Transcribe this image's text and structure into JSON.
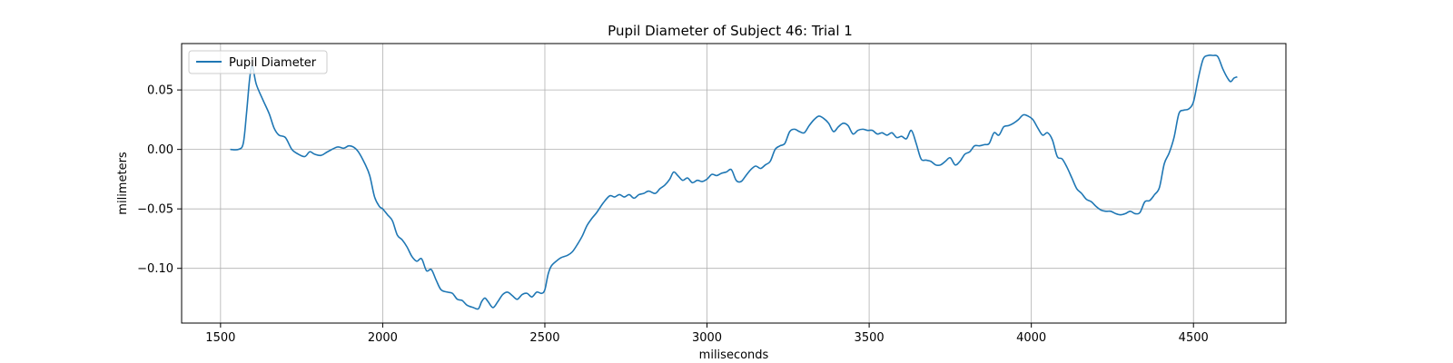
{
  "chart_data": {
    "type": "line",
    "title": "Pupil Diameter of Subject 46: Trial 1",
    "xlabel": "miliseconds",
    "ylabel": "milimeters",
    "xlim": [
      1380,
      4785
    ],
    "ylim": [
      -0.146,
      0.089
    ],
    "xticks": [
      1500,
      2000,
      2500,
      3000,
      3500,
      4000,
      4500
    ],
    "xtick_labels": [
      "1500",
      "2000",
      "2500",
      "3000",
      "3500",
      "4000",
      "4500"
    ],
    "yticks": [
      -0.1,
      -0.05,
      0.0,
      0.05
    ],
    "ytick_labels": [
      "−0.10",
      "−0.05",
      "0.00",
      "0.05"
    ],
    "grid": true,
    "legend_position": "top-left",
    "series": [
      {
        "name": "Pupil Diameter",
        "color": "#1f77b4",
        "points": [
          [
            1530,
            0.0
          ],
          [
            1555,
            0.0
          ],
          [
            1570,
            0.005
          ],
          [
            1580,
            0.03
          ],
          [
            1590,
            0.06
          ],
          [
            1598,
            0.07
          ],
          [
            1610,
            0.055
          ],
          [
            1630,
            0.042
          ],
          [
            1650,
            0.03
          ],
          [
            1665,
            0.018
          ],
          [
            1680,
            0.012
          ],
          [
            1700,
            0.01
          ],
          [
            1720,
            0.0
          ],
          [
            1740,
            -0.004
          ],
          [
            1760,
            -0.006
          ],
          [
            1775,
            -0.002
          ],
          [
            1790,
            -0.004
          ],
          [
            1810,
            -0.005
          ],
          [
            1830,
            -0.002
          ],
          [
            1860,
            0.002
          ],
          [
            1880,
            0.001
          ],
          [
            1895,
            0.003
          ],
          [
            1910,
            0.002
          ],
          [
            1925,
            -0.002
          ],
          [
            1945,
            -0.012
          ],
          [
            1960,
            -0.022
          ],
          [
            1975,
            -0.04
          ],
          [
            1990,
            -0.048
          ],
          [
            2000,
            -0.05
          ],
          [
            2015,
            -0.055
          ],
          [
            2030,
            -0.06
          ],
          [
            2045,
            -0.072
          ],
          [
            2060,
            -0.076
          ],
          [
            2075,
            -0.082
          ],
          [
            2090,
            -0.09
          ],
          [
            2105,
            -0.094
          ],
          [
            2120,
            -0.092
          ],
          [
            2135,
            -0.102
          ],
          [
            2150,
            -0.101
          ],
          [
            2165,
            -0.11
          ],
          [
            2180,
            -0.118
          ],
          [
            2200,
            -0.12
          ],
          [
            2215,
            -0.121
          ],
          [
            2230,
            -0.126
          ],
          [
            2245,
            -0.127
          ],
          [
            2260,
            -0.131
          ],
          [
            2280,
            -0.133
          ],
          [
            2295,
            -0.134
          ],
          [
            2305,
            -0.128
          ],
          [
            2315,
            -0.125
          ],
          [
            2325,
            -0.128
          ],
          [
            2340,
            -0.133
          ],
          [
            2355,
            -0.128
          ],
          [
            2370,
            -0.122
          ],
          [
            2385,
            -0.12
          ],
          [
            2400,
            -0.123
          ],
          [
            2415,
            -0.126
          ],
          [
            2430,
            -0.122
          ],
          [
            2445,
            -0.121
          ],
          [
            2460,
            -0.124
          ],
          [
            2475,
            -0.12
          ],
          [
            2490,
            -0.121
          ],
          [
            2500,
            -0.118
          ],
          [
            2510,
            -0.105
          ],
          [
            2520,
            -0.098
          ],
          [
            2535,
            -0.094
          ],
          [
            2550,
            -0.091
          ],
          [
            2570,
            -0.089
          ],
          [
            2585,
            -0.086
          ],
          [
            2600,
            -0.08
          ],
          [
            2615,
            -0.073
          ],
          [
            2630,
            -0.064
          ],
          [
            2645,
            -0.058
          ],
          [
            2660,
            -0.053
          ],
          [
            2680,
            -0.045
          ],
          [
            2700,
            -0.039
          ],
          [
            2715,
            -0.04
          ],
          [
            2730,
            -0.038
          ],
          [
            2745,
            -0.04
          ],
          [
            2760,
            -0.038
          ],
          [
            2775,
            -0.041
          ],
          [
            2790,
            -0.038
          ],
          [
            2805,
            -0.037
          ],
          [
            2820,
            -0.035
          ],
          [
            2840,
            -0.037
          ],
          [
            2855,
            -0.033
          ],
          [
            2870,
            -0.03
          ],
          [
            2885,
            -0.025
          ],
          [
            2897,
            -0.019
          ],
          [
            2910,
            -0.022
          ],
          [
            2925,
            -0.026
          ],
          [
            2940,
            -0.024
          ],
          [
            2955,
            -0.028
          ],
          [
            2970,
            -0.026
          ],
          [
            2985,
            -0.027
          ],
          [
            3000,
            -0.025
          ],
          [
            3015,
            -0.021
          ],
          [
            3030,
            -0.022
          ],
          [
            3045,
            -0.02
          ],
          [
            3060,
            -0.019
          ],
          [
            3075,
            -0.017
          ],
          [
            3090,
            -0.026
          ],
          [
            3105,
            -0.027
          ],
          [
            3120,
            -0.022
          ],
          [
            3135,
            -0.017
          ],
          [
            3150,
            -0.014
          ],
          [
            3165,
            -0.016
          ],
          [
            3180,
            -0.013
          ],
          [
            3195,
            -0.01
          ],
          [
            3210,
            0.0
          ],
          [
            3225,
            0.003
          ],
          [
            3240,
            0.005
          ],
          [
            3255,
            0.015
          ],
          [
            3270,
            0.017
          ],
          [
            3285,
            0.015
          ],
          [
            3300,
            0.014
          ],
          [
            3315,
            0.02
          ],
          [
            3330,
            0.025
          ],
          [
            3345,
            0.028
          ],
          [
            3360,
            0.026
          ],
          [
            3375,
            0.022
          ],
          [
            3390,
            0.015
          ],
          [
            3405,
            0.019
          ],
          [
            3420,
            0.022
          ],
          [
            3435,
            0.02
          ],
          [
            3450,
            0.013
          ],
          [
            3465,
            0.016
          ],
          [
            3480,
            0.017
          ],
          [
            3495,
            0.016
          ],
          [
            3510,
            0.016
          ],
          [
            3525,
            0.013
          ],
          [
            3540,
            0.014
          ],
          [
            3555,
            0.012
          ],
          [
            3570,
            0.014
          ],
          [
            3585,
            0.01
          ],
          [
            3600,
            0.011
          ],
          [
            3615,
            0.009
          ],
          [
            3630,
            0.016
          ],
          [
            3645,
            0.005
          ],
          [
            3660,
            -0.008
          ],
          [
            3675,
            -0.009
          ],
          [
            3690,
            -0.01
          ],
          [
            3705,
            -0.013
          ],
          [
            3720,
            -0.013
          ],
          [
            3735,
            -0.01
          ],
          [
            3750,
            -0.007
          ],
          [
            3765,
            -0.013
          ],
          [
            3780,
            -0.01
          ],
          [
            3795,
            -0.004
          ],
          [
            3810,
            -0.002
          ],
          [
            3825,
            0.003
          ],
          [
            3840,
            0.003
          ],
          [
            3855,
            0.004
          ],
          [
            3870,
            0.005
          ],
          [
            3885,
            0.014
          ],
          [
            3900,
            0.012
          ],
          [
            3915,
            0.019
          ],
          [
            3930,
            0.02
          ],
          [
            3945,
            0.022
          ],
          [
            3960,
            0.025
          ],
          [
            3975,
            0.029
          ],
          [
            3990,
            0.028
          ],
          [
            4005,
            0.025
          ],
          [
            4020,
            0.018
          ],
          [
            4035,
            0.012
          ],
          [
            4050,
            0.014
          ],
          [
            4065,
            0.008
          ],
          [
            4080,
            -0.006
          ],
          [
            4095,
            -0.008
          ],
          [
            4110,
            -0.015
          ],
          [
            4125,
            -0.024
          ],
          [
            4140,
            -0.033
          ],
          [
            4155,
            -0.037
          ],
          [
            4170,
            -0.042
          ],
          [
            4185,
            -0.044
          ],
          [
            4200,
            -0.048
          ],
          [
            4215,
            -0.051
          ],
          [
            4230,
            -0.052
          ],
          [
            4245,
            -0.052
          ],
          [
            4260,
            -0.054
          ],
          [
            4275,
            -0.055
          ],
          [
            4290,
            -0.054
          ],
          [
            4305,
            -0.052
          ],
          [
            4320,
            -0.054
          ],
          [
            4335,
            -0.053
          ],
          [
            4350,
            -0.044
          ],
          [
            4365,
            -0.043
          ],
          [
            4380,
            -0.038
          ],
          [
            4395,
            -0.032
          ],
          [
            4410,
            -0.012
          ],
          [
            4425,
            -0.003
          ],
          [
            4440,
            0.01
          ],
          [
            4455,
            0.03
          ],
          [
            4470,
            0.033
          ],
          [
            4485,
            0.034
          ],
          [
            4500,
            0.04
          ],
          [
            4515,
            0.06
          ],
          [
            4530,
            0.076
          ],
          [
            4545,
            0.079
          ],
          [
            4560,
            0.079
          ],
          [
            4575,
            0.078
          ],
          [
            4590,
            0.068
          ],
          [
            4605,
            0.06
          ],
          [
            4615,
            0.057
          ],
          [
            4625,
            0.06
          ],
          [
            4635,
            0.061
          ]
        ]
      }
    ]
  }
}
